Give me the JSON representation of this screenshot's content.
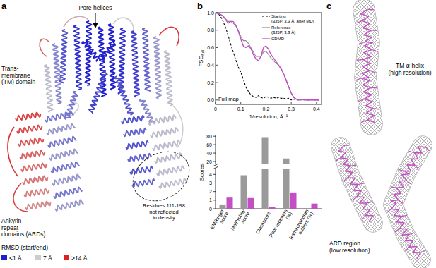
{
  "panel_labels": [
    "a",
    "b",
    "c"
  ],
  "panel_a": {
    "pore_label": "Pore helices",
    "tm_label": "Trans-\nmembrane\n(TM) domain",
    "ard_label": "Ankyrin\nrepeat\ndomains (ARDs)",
    "residues_label": "Residues 111-198\nnot reflected\nin density",
    "legend": {
      "title": "RMSD (start/end)",
      "items": [
        {
          "label": "<1 Å",
          "color": "#1f1fcf"
        },
        {
          "label": "7 Å",
          "color": "#cccccc"
        },
        {
          "label": ">14 Å",
          "color": "#e02020"
        }
      ]
    }
  },
  "chart_data": [
    {
      "type": "line",
      "annotation": "Full map",
      "x_label": "1/resolution, Å⁻¹",
      "y_label": "FSC",
      "y_label_subscript": "full",
      "x": [
        0.0,
        0.01,
        0.02,
        0.03,
        0.04,
        0.05,
        0.06,
        0.07,
        0.08,
        0.09,
        0.1,
        0.11,
        0.12,
        0.13,
        0.14,
        0.15,
        0.16,
        0.17,
        0.18,
        0.19,
        0.2,
        0.21,
        0.22,
        0.23,
        0.24,
        0.25,
        0.26,
        0.27,
        0.28,
        0.29,
        0.3,
        0.31,
        0.32,
        0.33,
        0.34,
        0.35,
        0.36,
        0.37,
        0.38,
        0.39,
        0.4,
        0.41
      ],
      "xlim": [
        0,
        0.42
      ],
      "xticks": [
        0,
        0.1,
        0.2,
        0.3,
        0.4
      ],
      "ylim": [
        -0.05,
        1.0
      ],
      "yticks": [
        {
          "value": 0,
          "label": "0.0"
        },
        0.2,
        0.4,
        0.6,
        0.8,
        {
          "value": 1,
          "label": "1.0"
        }
      ],
      "legend": "upper right",
      "series": [
        {
          "name": "Starting\n(3J5P, 3.3 Å, after MD)",
          "color": "#000000",
          "line_style": "dashed",
          "values": [
            1.0,
            0.99,
            0.96,
            0.9,
            0.83,
            0.74,
            0.64,
            0.55,
            0.46,
            0.38,
            0.32,
            0.24,
            0.15,
            0.1,
            0.06,
            0.04,
            0.03,
            0.05,
            0.03,
            0.02,
            0.04,
            0.03,
            0.02,
            0.03,
            0.02,
            0.03,
            0.02,
            0.02,
            0.01,
            0.02,
            0.0,
            0.01,
            0.0,
            0.0,
            0.01,
            0.0,
            0.0,
            0.0,
            0.01,
            0.0,
            0.0,
            0.0
          ]
        },
        {
          "name": "Reference\n(3J5P, 3.3 Å)",
          "color": "#8c8c8c",
          "line_style": "solid",
          "values": [
            1.0,
            0.99,
            0.98,
            0.96,
            0.93,
            0.9,
            0.9,
            0.88,
            0.85,
            0.8,
            0.73,
            0.68,
            0.68,
            0.65,
            0.6,
            0.55,
            0.5,
            0.5,
            0.5,
            0.55,
            0.56,
            0.52,
            0.48,
            0.45,
            0.42,
            0.4,
            0.35,
            0.3,
            0.22,
            0.15,
            0.08,
            0.03,
            0.01,
            0.0,
            0.01,
            0.0,
            0.0,
            0.0,
            0.0,
            0.0,
            0.0,
            0.0
          ]
        },
        {
          "name": "CDMD",
          "color": "#c24fc4",
          "line_style": "solid",
          "values": [
            1.0,
            0.99,
            0.98,
            0.96,
            0.92,
            0.88,
            0.9,
            0.9,
            0.86,
            0.79,
            0.7,
            0.62,
            0.6,
            0.62,
            0.59,
            0.52,
            0.47,
            0.45,
            0.5,
            0.6,
            0.62,
            0.58,
            0.52,
            0.48,
            0.44,
            0.4,
            0.36,
            0.3,
            0.23,
            0.15,
            0.08,
            0.03,
            0.01,
            0.0,
            0.0,
            0.01,
            0.0,
            0.0,
            0.0,
            0.0,
            0.0,
            0.0
          ]
        }
      ]
    },
    {
      "type": "bar",
      "y_label": "Scores",
      "categories": [
        "EMRinger\nscore",
        "MolProbity\nscore",
        "Clashscore",
        "Poor rotamers\n(%)",
        "Ramachandran\noutliers (%)"
      ],
      "ylim": [
        0,
        82
      ],
      "y_break": [
        4.6,
        15
      ],
      "yticks": [
        0,
        1,
        2,
        3,
        4,
        20,
        40,
        60,
        80
      ],
      "series": [
        {
          "color": "#9a9a9a",
          "values": [
            0.5,
            3.9,
            78,
            27,
            0
          ]
        },
        {
          "color": "#c24fc4",
          "values": [
            1.3,
            1.25,
            0.2,
            1.9,
            0.6
          ]
        }
      ]
    }
  ],
  "panel_c": {
    "top_label": "TM α-helix\n(high resolution)",
    "bottom_label": "ARD region\n(low resolution)",
    "mesh_color": "#7a7a7a",
    "model_color": "#c24fc4"
  }
}
